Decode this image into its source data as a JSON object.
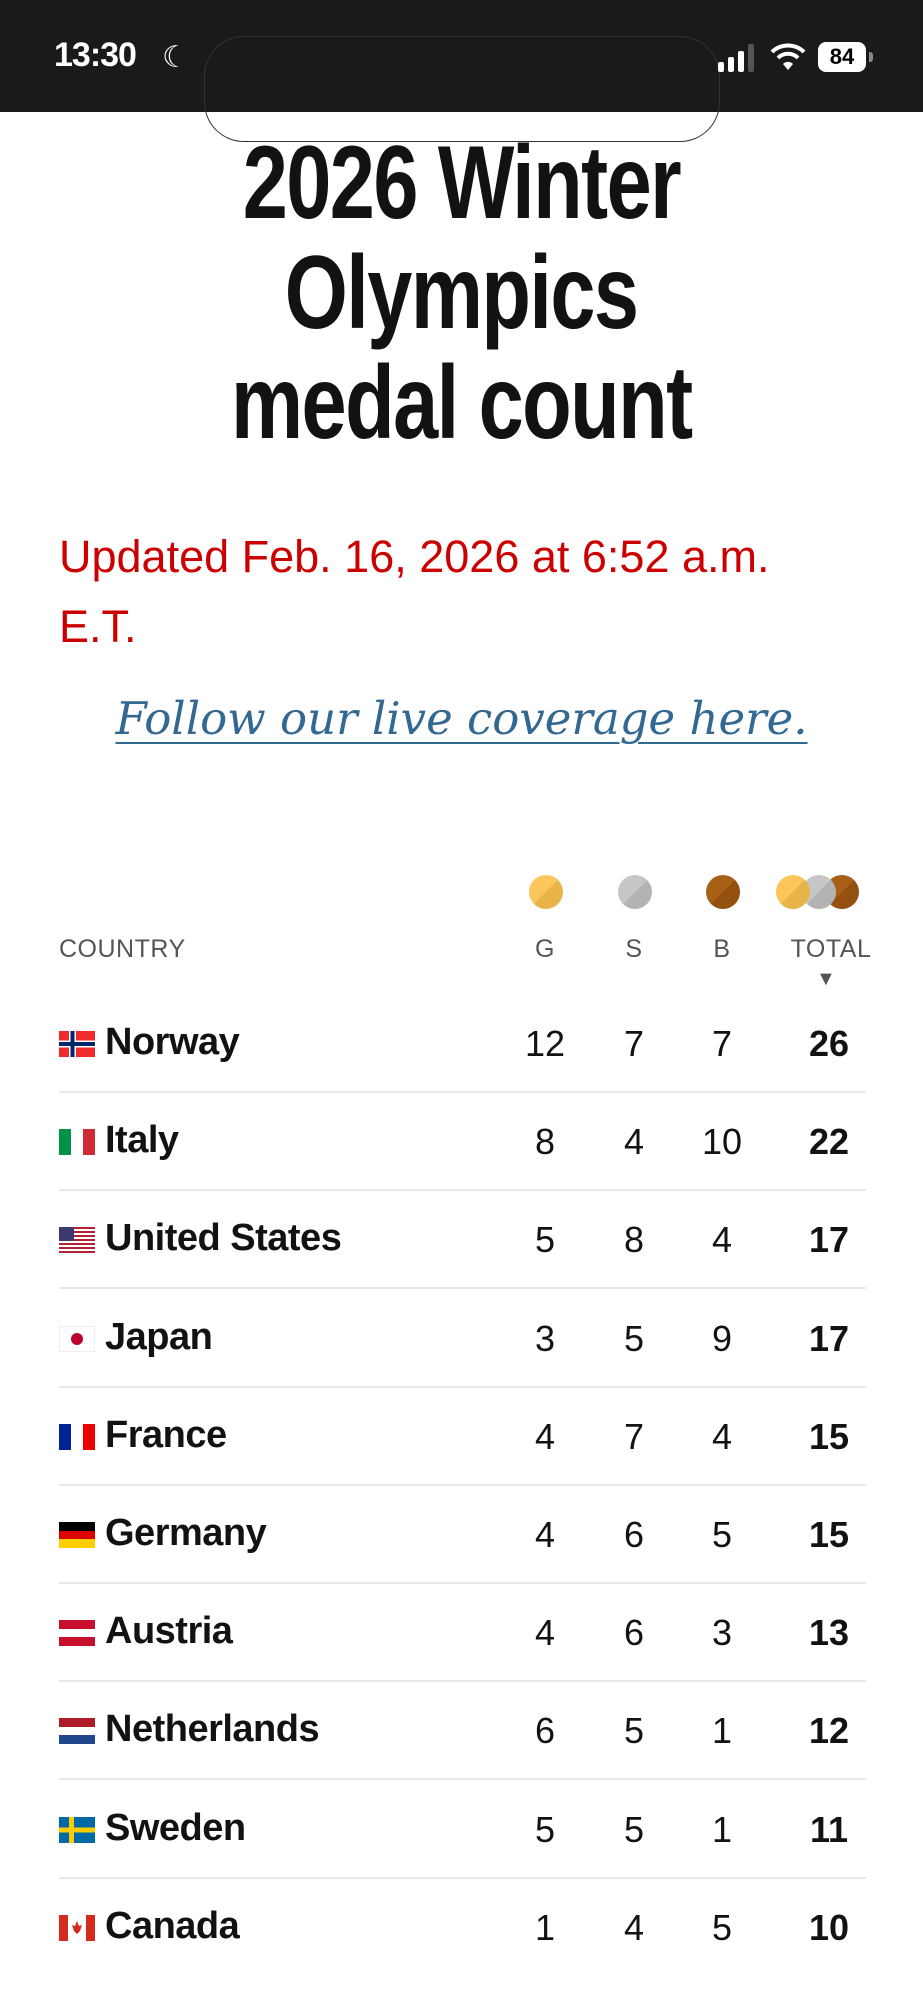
{
  "status_bar": {
    "time": "13:30",
    "battery": "84",
    "icons": [
      "moon-icon",
      "signal-icon",
      "wifi-icon",
      "battery-icon"
    ]
  },
  "title": [
    "2026 Winter",
    "Olympics",
    "medal count"
  ],
  "updated": "Updated Feb. 16, 2026 at 6:52 a.m. E.T.",
  "live_link": "Follow our live coverage here.",
  "colors": {
    "updated": "#cc0000",
    "link": "#326891",
    "gold": "#fcc65c",
    "silver": "#c6c6c6",
    "bronze": "#a85f16"
  },
  "table": {
    "headers": {
      "country": "COUNTRY",
      "gold": "G",
      "silver": "S",
      "bronze": "B",
      "total": "TOTAL",
      "sort": "▼"
    },
    "rows": [
      {
        "country": "Norway",
        "flag": "norway",
        "g": "12",
        "s": "7",
        "b": "7",
        "total": "26"
      },
      {
        "country": "Italy",
        "flag": "italy",
        "g": "8",
        "s": "4",
        "b": "10",
        "total": "22"
      },
      {
        "country": "United States",
        "flag": "usa",
        "g": "5",
        "s": "8",
        "b": "4",
        "total": "17"
      },
      {
        "country": "Japan",
        "flag": "japan",
        "g": "3",
        "s": "5",
        "b": "9",
        "total": "17"
      },
      {
        "country": "France",
        "flag": "france",
        "g": "4",
        "s": "7",
        "b": "4",
        "total": "15"
      },
      {
        "country": "Germany",
        "flag": "germany",
        "g": "4",
        "s": "6",
        "b": "5",
        "total": "15"
      },
      {
        "country": "Austria",
        "flag": "austria",
        "g": "4",
        "s": "6",
        "b": "3",
        "total": "13"
      },
      {
        "country": "Netherlands",
        "flag": "netherlands",
        "g": "6",
        "s": "5",
        "b": "1",
        "total": "12"
      },
      {
        "country": "Sweden",
        "flag": "sweden",
        "g": "5",
        "s": "5",
        "b": "1",
        "total": "11"
      },
      {
        "country": "Canada",
        "flag": "canada",
        "g": "1",
        "s": "4",
        "b": "5",
        "total": "10"
      }
    ]
  }
}
